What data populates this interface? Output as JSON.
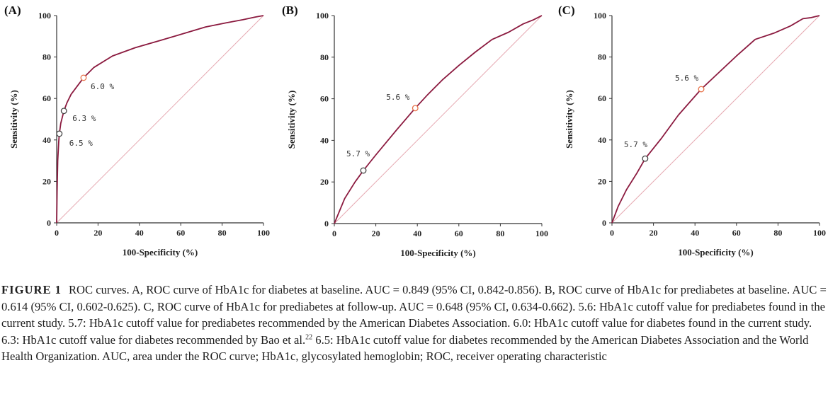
{
  "chart_data": [
    {
      "type": "line",
      "panel_label": "(A)",
      "xlabel": "100-Specificity (%)",
      "ylabel": "Sensitivity (%)",
      "xlim": [
        0,
        100
      ],
      "ylim": [
        0,
        100
      ],
      "xticks": [
        "0",
        "20",
        "40",
        "60",
        "80",
        "100"
      ],
      "yticks": [
        "0",
        "20",
        "40",
        "60",
        "80",
        "100"
      ],
      "reference_line": true,
      "series": [
        {
          "name": "ROC curve of HbA1c for diabetes at baseline",
          "points": [
            [
              0,
              0
            ],
            [
              0.2,
              15
            ],
            [
              0.5,
              30
            ],
            [
              1,
              39
            ],
            [
              1.3,
              43
            ],
            [
              2,
              48
            ],
            [
              3.5,
              54
            ],
            [
              5,
              58
            ],
            [
              7,
              62
            ],
            [
              10,
              66
            ],
            [
              13,
              70
            ],
            [
              18,
              75
            ],
            [
              27,
              80.5
            ],
            [
              38,
              84.5
            ],
            [
              50,
              88
            ],
            [
              62,
              91.5
            ],
            [
              72,
              94.5
            ],
            [
              82,
              96.5
            ],
            [
              90,
              98
            ],
            [
              96,
              99.3
            ],
            [
              100,
              100
            ]
          ]
        }
      ],
      "markers": [
        {
          "x": 13,
          "y": 70,
          "label": "6.0%",
          "style": "highlight"
        },
        {
          "x": 3.5,
          "y": 54,
          "label": "6.3%",
          "style": "plain"
        },
        {
          "x": 1.3,
          "y": 43,
          "label": "6.5%",
          "style": "plain"
        }
      ]
    },
    {
      "type": "line",
      "panel_label": "(B)",
      "xlabel": "100-Specificity (%)",
      "ylabel": "Sensitivity (%)",
      "xlim": [
        0,
        100
      ],
      "ylim": [
        0,
        100
      ],
      "xticks": [
        "0",
        "20",
        "40",
        "60",
        "80",
        "100"
      ],
      "yticks": [
        "0",
        "20",
        "40",
        "60",
        "80",
        "100"
      ],
      "reference_line": true,
      "series": [
        {
          "name": "ROC curve of HbA1c for prediabetes at baseline",
          "points": [
            [
              0,
              0
            ],
            [
              5,
              12
            ],
            [
              10,
              20
            ],
            [
              14,
              25.5
            ],
            [
              20,
              33
            ],
            [
              30,
              45
            ],
            [
              39,
              55.5
            ],
            [
              45,
              62
            ],
            [
              52,
              69
            ],
            [
              60,
              76
            ],
            [
              68,
              82.5
            ],
            [
              76,
              88.5
            ],
            [
              84,
              92
            ],
            [
              91,
              96
            ],
            [
              96,
              98
            ],
            [
              100,
              100
            ]
          ]
        }
      ],
      "markers": [
        {
          "x": 39,
          "y": 55.5,
          "label": "5.6%",
          "style": "highlight"
        },
        {
          "x": 14,
          "y": 25.5,
          "label": "5.7%",
          "style": "plain"
        }
      ]
    },
    {
      "type": "line",
      "panel_label": "(C)",
      "xlabel": "100-Specificity (%)",
      "ylabel": "Sensitivity (%)",
      "xlim": [
        0,
        100
      ],
      "ylim": [
        0,
        100
      ],
      "xticks": [
        "0",
        "20",
        "40",
        "60",
        "80",
        "100"
      ],
      "yticks": [
        "0",
        "20",
        "40",
        "60",
        "80",
        "100"
      ],
      "reference_line": true,
      "series": [
        {
          "name": "ROC curve of HbA1c for prediabetes at follow-up",
          "points": [
            [
              0,
              0
            ],
            [
              3,
              8
            ],
            [
              7,
              16
            ],
            [
              12,
              24
            ],
            [
              16,
              31
            ],
            [
              24,
              41
            ],
            [
              32,
              52
            ],
            [
              43,
              64.5
            ],
            [
              52,
              73
            ],
            [
              60,
              80.5
            ],
            [
              69,
              88.5
            ],
            [
              78,
              91.5
            ],
            [
              86,
              95
            ],
            [
              92,
              98.5
            ],
            [
              96,
              99
            ],
            [
              100,
              100
            ]
          ]
        }
      ],
      "markers": [
        {
          "x": 43,
          "y": 64.5,
          "label": "5.6%",
          "style": "highlight"
        },
        {
          "x": 16,
          "y": 31,
          "label": "5.7%",
          "style": "plain"
        }
      ]
    }
  ],
  "colors": {
    "curve": "#8b1a3f",
    "reference": "#e6aab2",
    "axis": "#333333",
    "marker_highlight": "#e8734a",
    "marker_plain": "#444444"
  },
  "caption": {
    "figure_label": "FIGURE 1",
    "text_before_ref": "ROC curves. A, ROC curve of HbA1c for diabetes at baseline. AUC = 0.849 (95% CI, 0.842-0.856). B, ROC curve of HbA1c for prediabetes at baseline. AUC = 0.614 (95% CI, 0.602-0.625). C, ROC curve of HbA1c for prediabetes at follow-up. AUC = 0.648 (95% CI, 0.634-0.662). 5.6: HbA1c cutoff value for prediabetes found in the current study. 5.7: HbA1c cutoff value for prediabetes recommended by the American Diabetes Association. 6.0: HbA1c cutoff value for diabetes found in the current study. 6.3: HbA1c cutoff value for diabetes recommended by Bao et al.",
    "reference_number": "22",
    "text_after_ref": " 6.5: HbA1c cutoff value for diabetes recommended by the American Diabetes Association and the World Health Organization. AUC, area under the ROC curve; HbA1c, glycosylated hemoglobin; ROC, receiver operating characteristic"
  }
}
